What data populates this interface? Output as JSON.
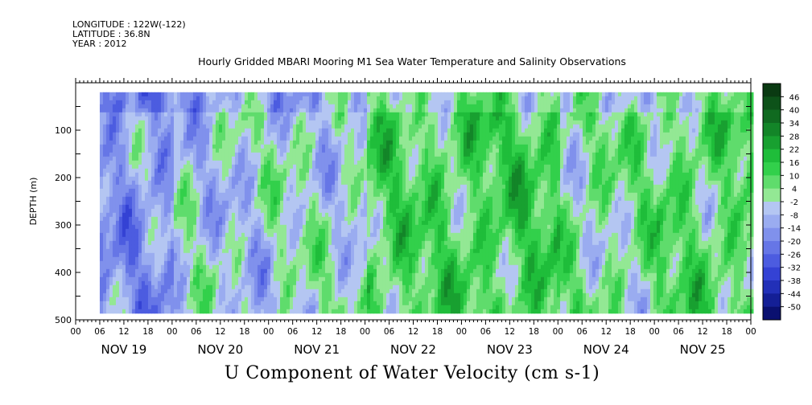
{
  "header": {
    "longitude": "LONGITUDE : 122W(-122)",
    "latitude": "LATITUDE : 36.8N",
    "year": "YEAR : 2012"
  },
  "chart_data": {
    "type": "heatmap",
    "title": "Hourly Gridded MBARI Mooring M1 Sea Water Temperature and Salinity Observations",
    "xlabel": "U Component of Water Velocity (cm s-1)",
    "ylabel": "DEPTH (m)",
    "x_range_hours": [
      0,
      168
    ],
    "data_start_hour": 6,
    "ylim": [
      500,
      0
    ],
    "data_depth_range": [
      20,
      485
    ],
    "y_ticks": [
      100,
      200,
      300,
      400,
      500
    ],
    "x_hour_tick_labels": [
      "00",
      "06",
      "12",
      "18"
    ],
    "x_day_labels": [
      "NOV 19",
      "NOV 20",
      "NOV 21",
      "NOV 22",
      "NOV 23",
      "NOV 24",
      "NOV 25"
    ],
    "colorbar": {
      "min": -50,
      "max": 50,
      "step": 3,
      "labels": [
        "46",
        "40",
        "34",
        "28",
        "22",
        "16",
        "10",
        "4",
        "-2",
        "-8",
        "-14",
        "-20",
        "-26",
        "-32",
        "-38",
        "-44",
        "-50"
      ],
      "colors": [
        "#0a3a12",
        "#0d5219",
        "#106a20",
        "#138528",
        "#18a030",
        "#1fbd3a",
        "#32d04b",
        "#5fdc6c",
        "#93e894",
        "#b4c6f2",
        "#9aacf0",
        "#8091ec",
        "#6676e6",
        "#4c5ce0",
        "#3442d4",
        "#2230b8",
        "#141f96",
        "#0a1070"
      ]
    },
    "field_summary": [
      {
        "day": "NOV 19",
        "dominant": "negative (blue)"
      },
      {
        "day": "NOV 20",
        "dominant": "mixed"
      },
      {
        "day": "NOV 21",
        "dominant": "mixed"
      },
      {
        "day": "NOV 22",
        "dominant": "positive (green)"
      },
      {
        "day": "NOV 23",
        "dominant": "positive (green)"
      },
      {
        "day": "NOV 24",
        "dominant": "mixed"
      },
      {
        "day": "NOV 25",
        "dominant": "positive (green)"
      }
    ]
  }
}
